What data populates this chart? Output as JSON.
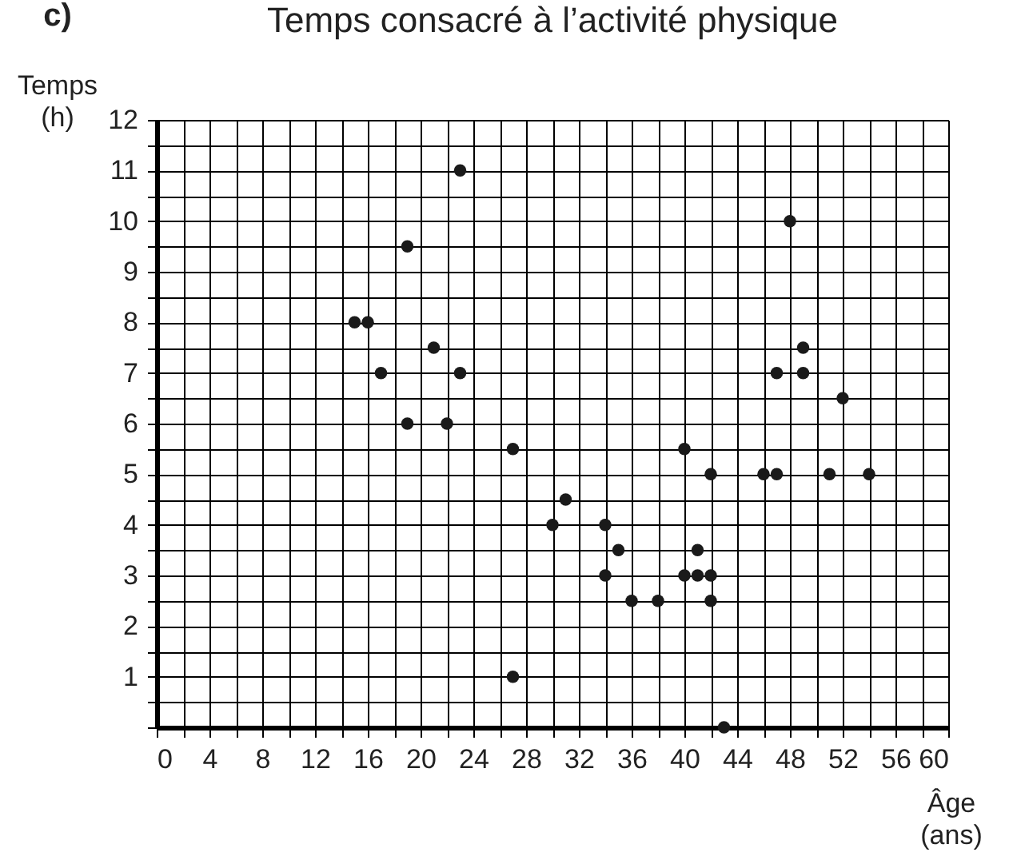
{
  "chart_data": {
    "type": "scatter",
    "title": "Temps consacré à l’activité physique",
    "xlabel": "Âge (ans)",
    "ylabel": "Temps (h)",
    "annotations": [
      "c)"
    ],
    "x": [
      15,
      16,
      17,
      19,
      19,
      21,
      22,
      23,
      23,
      27,
      27,
      30,
      31,
      34,
      34,
      35,
      36,
      38,
      40,
      40,
      41,
      41,
      42,
      42,
      42,
      43,
      46,
      47,
      47,
      48,
      49,
      49,
      51,
      52,
      54
    ],
    "series": [
      {
        "color": "#1a1a1a",
        "values": [
          8,
          8,
          7,
          9.5,
          6,
          7.5,
          6,
          11,
          7,
          5.5,
          1,
          4,
          4.5,
          4,
          3,
          3.5,
          2.5,
          2.5,
          5.5,
          3,
          3.5,
          3,
          5,
          3,
          2.5,
          0,
          5,
          7,
          5,
          10,
          7.5,
          7,
          5,
          6.5,
          5
        ]
      }
    ],
    "grid": true,
    "xlim": [
      0,
      60
    ],
    "ylim": [
      0,
      12
    ],
    "xticks": [
      0,
      {
        "value": 2,
        "label": null
      },
      4,
      {
        "value": 6,
        "label": null
      },
      8,
      {
        "value": 10,
        "label": null
      },
      12,
      {
        "value": 14,
        "label": null
      },
      16,
      {
        "value": 18,
        "label": null
      },
      20,
      {
        "value": 22,
        "label": null
      },
      24,
      {
        "value": 26,
        "label": null
      },
      28,
      {
        "value": 30,
        "label": null
      },
      32,
      {
        "value": 34,
        "label": null
      },
      36,
      {
        "value": 38,
        "label": null
      },
      40,
      {
        "value": 42,
        "label": null
      },
      44,
      {
        "value": 46,
        "label": null
      },
      48,
      {
        "value": 50,
        "label": null
      },
      52,
      {
        "value": 54,
        "label": null
      },
      56,
      {
        "value": 58,
        "label": null
      },
      60
    ],
    "yticks": [
      {
        "value": 0,
        "label": null
      },
      {
        "value": 0.5,
        "label": null
      },
      1,
      {
        "value": 1.5,
        "label": null
      },
      2,
      {
        "value": 2.5,
        "label": null
      },
      3,
      {
        "value": 3.5,
        "label": null
      },
      4,
      {
        "value": 4.5,
        "label": null
      },
      5,
      {
        "value": 5.5,
        "label": null
      },
      6,
      {
        "value": 6.5,
        "label": null
      },
      7,
      {
        "value": 7.5,
        "label": null
      },
      8,
      {
        "value": 8.5,
        "label": null
      },
      9,
      {
        "value": 9.5,
        "label": null
      },
      10,
      {
        "value": 10.5,
        "label": null
      },
      11,
      {
        "value": 11.5,
        "label": null
      },
      12
    ]
  }
}
